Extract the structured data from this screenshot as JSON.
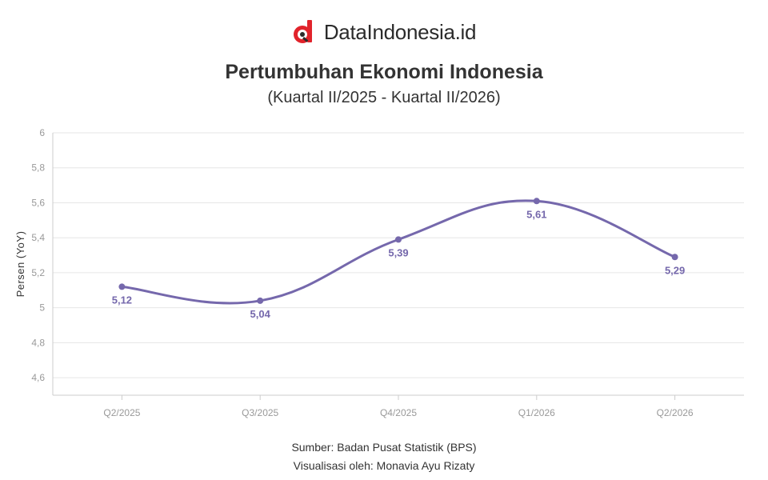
{
  "brand": {
    "name": "DataIndonesia.id",
    "logo_icon": "dataindonesia-logo-icon",
    "logo_colors": {
      "red": "#e1232b",
      "dark": "#2b2b2b"
    }
  },
  "header": {
    "title": "Pertumbuhan Ekonomi Indonesia",
    "subtitle": "(Kuartal II/2025 - Kuartal II/2026)"
  },
  "footer": {
    "source": "Sumber: Badan Pusat Statistik (BPS)",
    "credit": "Visualisasi oleh: Monavia Ayu Rizaty"
  },
  "chart_data": {
    "type": "line",
    "title": "Pertumbuhan Ekonomi Indonesia",
    "subtitle": "(Kuartal II/2025 - Kuartal II/2026)",
    "xlabel": "",
    "ylabel": "Persen (YoY)",
    "categories": [
      "Q2/2025",
      "Q3/2025",
      "Q4/2025",
      "Q1/2026",
      "Q2/2026"
    ],
    "series": [
      {
        "values": [
          5.12,
          5.04,
          5.39,
          5.61,
          5.29
        ]
      }
    ],
    "data_labels": [
      "5,12",
      "5,04",
      "5,39",
      "5,61",
      "5,29"
    ],
    "yticks": [
      4.6,
      4.8,
      5,
      5.2,
      5.4,
      5.6,
      5.8,
      6
    ],
    "ytick_labels": [
      "4,6",
      "4,8",
      "5",
      "5,2",
      "5,4",
      "5,6",
      "5,8",
      "6"
    ],
    "ylim": [
      4.5,
      6
    ],
    "grid": true,
    "smooth": true,
    "legend": "none",
    "colors": {
      "line": "#7568ac",
      "grid": "#e6e6e6",
      "axis": "#cccccc",
      "tick_text": "#999999"
    }
  }
}
